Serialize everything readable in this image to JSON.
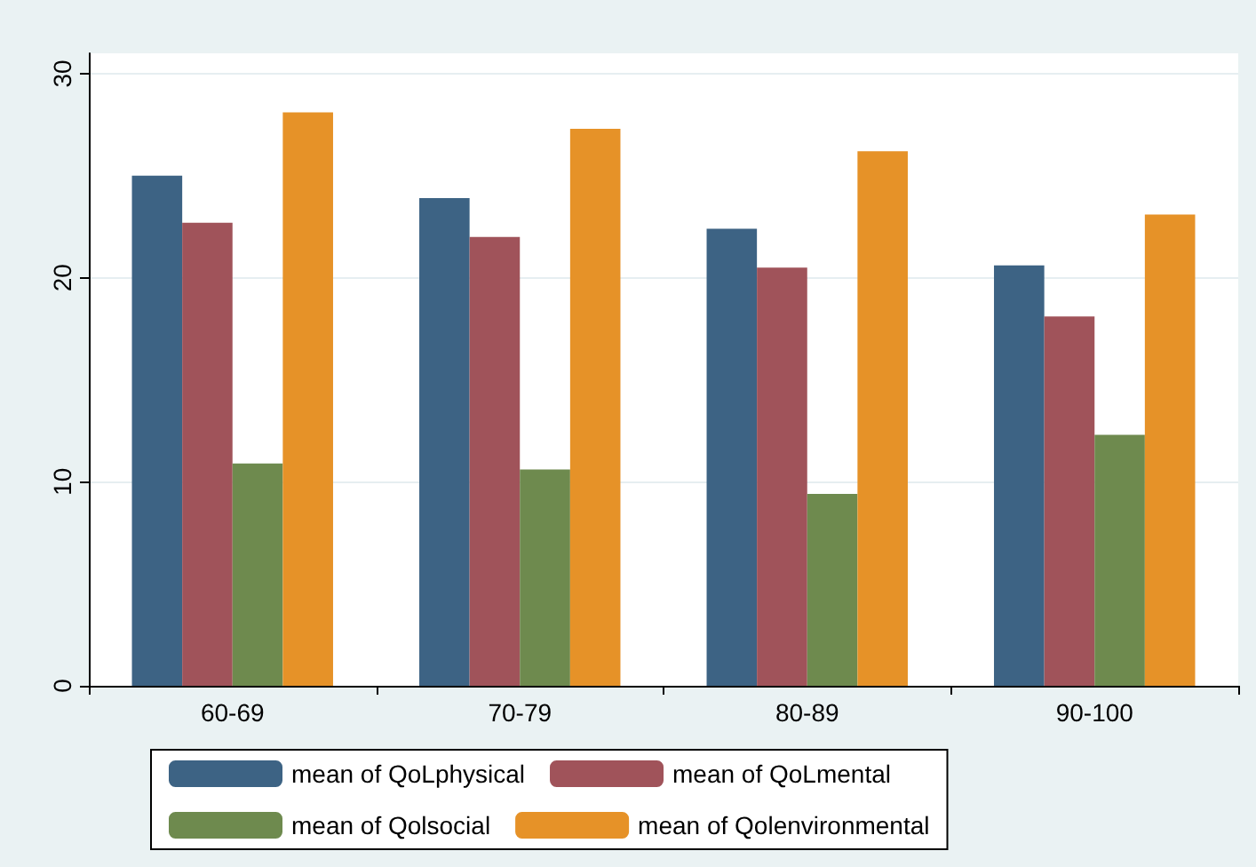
{
  "chart_data": {
    "type": "bar",
    "categories": [
      "60-69",
      "70-79",
      "80-89",
      "90-100"
    ],
    "series": [
      {
        "name": "mean of QoLphysical",
        "color": "#3d6384",
        "values": [
          25.0,
          23.9,
          22.4,
          20.6
        ]
      },
      {
        "name": "mean of QoLmental",
        "color": "#a0535a",
        "values": [
          22.7,
          22.0,
          20.5,
          18.1
        ]
      },
      {
        "name": "mean of Qolsocial",
        "color": "#6e8a4e",
        "values": [
          10.9,
          10.6,
          9.4,
          12.3
        ]
      },
      {
        "name": "mean of Qolenvironmental",
        "color": "#e69228",
        "values": [
          28.1,
          27.3,
          26.2,
          23.1
        ]
      }
    ],
    "ylim": [
      0,
      31
    ],
    "yticks": [
      0,
      10,
      20,
      30
    ],
    "grid": "y",
    "legend": "bottom"
  }
}
